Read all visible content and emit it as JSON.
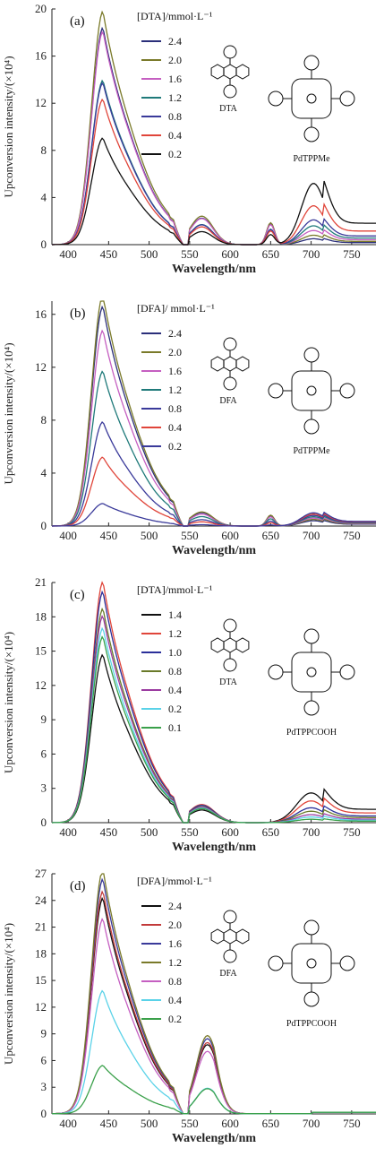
{
  "chart_data": [
    {
      "type": "line",
      "panel_label": "(a)",
      "ylabel": "Upconversion intensity/(×10⁴)",
      "xlabel": "Wavelength/nm",
      "xlim": [
        380,
        780
      ],
      "ylim": [
        0,
        20
      ],
      "x_ticks": [
        400,
        450,
        500,
        550,
        600,
        650,
        700,
        750
      ],
      "y_ticks": [
        0,
        4,
        8,
        12,
        16,
        20
      ],
      "legend_title": "[DTA]/mmol·L⁻¹",
      "molecule_labels": [
        "DTA",
        "PdTPPMe"
      ],
      "series": [
        {
          "name": "2.4",
          "color": "#2b2f7a",
          "peak": 17.3,
          "tail": 0.5
        },
        {
          "name": "2.0",
          "color": "#7a7a2a",
          "peak": 18.6,
          "tail": 0.8
        },
        {
          "name": "1.6",
          "color": "#c55fc1",
          "peak": 17.0,
          "tail": 1.2
        },
        {
          "name": "1.2",
          "color": "#1f7a7a",
          "peak": 13.1,
          "tail": 1.6
        },
        {
          "name": "0.8",
          "color": "#3a3a9a",
          "peak": 12.9,
          "tail": 2.1
        },
        {
          "name": "0.4",
          "color": "#e0453a",
          "peak": 11.6,
          "tail": 3.3
        },
        {
          "name": "0.2",
          "color": "#111111",
          "peak": 8.5,
          "tail": 5.2
        }
      ]
    },
    {
      "type": "line",
      "panel_label": "(b)",
      "ylabel": "Upconversion intensity/(×10⁴)",
      "xlabel": "Wavelength/nm",
      "xlim": [
        380,
        780
      ],
      "ylim": [
        0,
        17
      ],
      "x_ticks": [
        400,
        450,
        500,
        550,
        600,
        650,
        700,
        750
      ],
      "y_ticks": [
        0,
        4,
        8,
        12,
        16
      ],
      "legend_title": "[DFA]/ mmol·L⁻¹",
      "molecule_labels": [
        "DFA",
        "PdTPPMe"
      ],
      "series": [
        {
          "name": "2.4",
          "color": "#2b2f7a",
          "peak": 15.6,
          "tail": 0.4
        },
        {
          "name": "2.0",
          "color": "#7a7a2a",
          "peak": 16.4,
          "tail": 0.5
        },
        {
          "name": "1.6",
          "color": "#c55fc1",
          "peak": 13.9,
          "tail": 0.6
        },
        {
          "name": "1.2",
          "color": "#1f7a7a",
          "peak": 11.0,
          "tail": 0.7
        },
        {
          "name": "0.8",
          "color": "#3a3a9a",
          "peak": 7.4,
          "tail": 0.8
        },
        {
          "name": "0.4",
          "color": "#e0453a",
          "peak": 4.9,
          "tail": 0.9
        },
        {
          "name": "0.2",
          "color": "#3a3a9a",
          "peak": 1.6,
          "tail": 1.0
        }
      ]
    },
    {
      "type": "line",
      "panel_label": "(c)",
      "ylabel": "Upconversion intensity/(×10⁴)",
      "xlabel": "Wavelength/nm",
      "xlim": [
        380,
        780
      ],
      "ylim": [
        0,
        21
      ],
      "x_ticks": [
        400,
        450,
        500,
        550,
        600,
        650,
        700,
        750
      ],
      "y_ticks": [
        0,
        3,
        6,
        9,
        12,
        15,
        18,
        21
      ],
      "legend_title": "[DTA]/mmol·L⁻¹",
      "molecule_labels": [
        "DTA",
        "PdTPPCOOH"
      ],
      "series": [
        {
          "name": "1.4",
          "color": "#111111",
          "peak": 13.8,
          "tail": 2.6
        },
        {
          "name": "1.2",
          "color": "#e0453a",
          "peak": 19.8,
          "tail": 1.9
        },
        {
          "name": "1.0",
          "color": "#2b2f9a",
          "peak": 19.0,
          "tail": 1.3
        },
        {
          "name": "0.8",
          "color": "#6a7a2a",
          "peak": 17.6,
          "tail": 1.0
        },
        {
          "name": "0.4",
          "color": "#9a3aa0",
          "peak": 17.0,
          "tail": 0.7
        },
        {
          "name": "0.2",
          "color": "#5ad2e8",
          "peak": 16.0,
          "tail": 0.5
        },
        {
          "name": "0.1",
          "color": "#3aa04a",
          "peak": 15.3,
          "tail": 0.3
        }
      ]
    },
    {
      "type": "line",
      "panel_label": "(d)",
      "ylabel": "Upconversion intensity/(×10⁴)",
      "xlabel": "Wavelength/nm",
      "xlim": [
        380,
        780
      ],
      "ylim": [
        0,
        27
      ],
      "x_ticks": [
        400,
        450,
        500,
        550,
        600,
        650,
        700,
        750
      ],
      "y_ticks": [
        0,
        3,
        6,
        9,
        12,
        15,
        18,
        21,
        24,
        27
      ],
      "legend_title": "[DFA]/mmol·L⁻¹",
      "molecule_labels": [
        "DFA",
        "PdTPPCOOH"
      ],
      "series": [
        {
          "name": "2.4",
          "color": "#111111",
          "peak": 22.8,
          "tail": 0.3
        },
        {
          "name": "2.0",
          "color": "#c23a3a",
          "peak": 23.5,
          "tail": 0.3
        },
        {
          "name": "1.6",
          "color": "#3a3a9a",
          "peak": 24.8,
          "tail": 0.3
        },
        {
          "name": "1.2",
          "color": "#7a7a2a",
          "peak": 25.8,
          "tail": 0.3
        },
        {
          "name": "0.8",
          "color": "#c55fc1",
          "peak": 20.6,
          "tail": 0.3
        },
        {
          "name": "0.4",
          "color": "#5ad2e8",
          "peak": 13.0,
          "tail": 0.3
        },
        {
          "name": "0.2",
          "color": "#3aa04a",
          "peak": 5.1,
          "tail": 0.3
        }
      ]
    }
  ]
}
